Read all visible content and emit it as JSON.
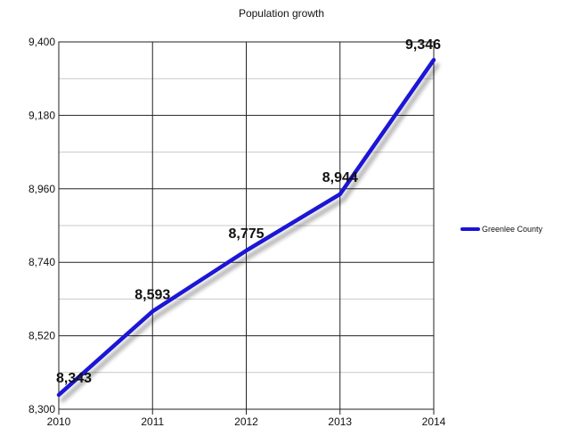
{
  "chart_data": {
    "type": "line",
    "title": "Population growth",
    "x": [
      "2010",
      "2011",
      "2012",
      "2013",
      "2014"
    ],
    "series": [
      {
        "name": "Greenlee County",
        "values": [
          8343,
          8593,
          8775,
          8944,
          9346
        ],
        "labels": [
          "8,343",
          "8,593",
          "8,775",
          "8,944",
          "9,346"
        ],
        "color": "#1a12d6"
      }
    ],
    "yticks": [
      "8,300",
      "8,520",
      "8,740",
      "8,960",
      "9,180",
      "9,400"
    ],
    "ylim": [
      8300,
      9400
    ],
    "grid": true,
    "legend": "right"
  }
}
